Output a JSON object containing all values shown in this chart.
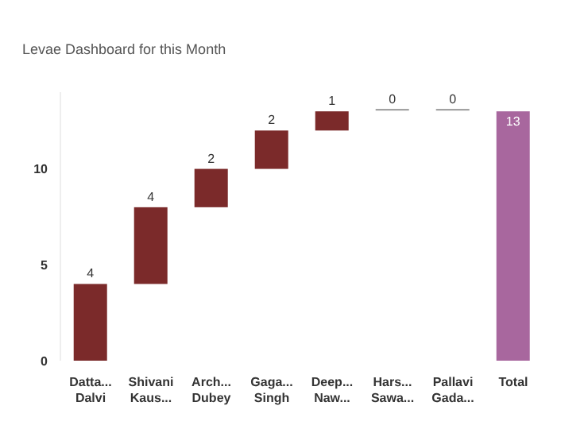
{
  "chart_data": {
    "type": "bar",
    "title": "Levae Dashboard for this Month",
    "categories": [
      "Datta... Dalvi",
      "Shivani Kaus...",
      "Arch... Dubey",
      "Gaga... Singh",
      "Deep... Naw...",
      "Hars... Sawa...",
      "Pallavi Gada...",
      "Total"
    ],
    "values": [
      4,
      4,
      2,
      2,
      1,
      0,
      0,
      13
    ],
    "base": [
      0,
      4,
      8,
      10,
      12,
      13,
      13,
      0
    ],
    "colors": [
      "#7b2a2a",
      "#7b2a2a",
      "#7b2a2a",
      "#7b2a2a",
      "#7b2a2a",
      "#999999",
      "#999999",
      "#a8679e"
    ],
    "data_labels": true,
    "ylim": [
      0,
      14
    ],
    "yticks": [
      0,
      5,
      10
    ]
  }
}
